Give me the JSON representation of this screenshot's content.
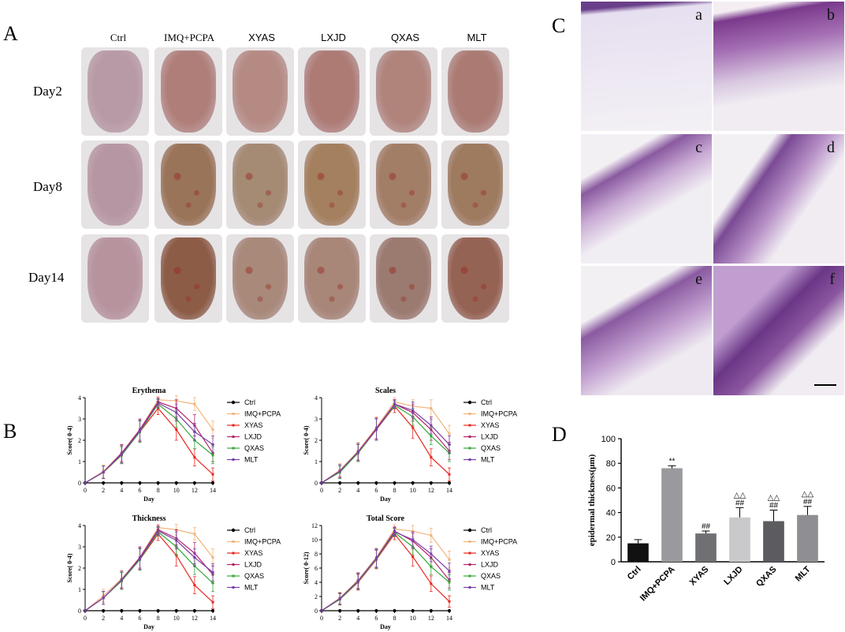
{
  "panels": {
    "A": "A",
    "B": "B",
    "C": "C",
    "D": "D"
  },
  "panelA": {
    "columns": [
      "Ctrl",
      "IMQ+PCPA",
      "XYAS",
      "LXJD",
      "QXAS",
      "MLT"
    ],
    "rows": [
      "Day2",
      "Day8",
      "Day14"
    ]
  },
  "panelC": {
    "labels": [
      "a",
      "b",
      "c",
      "d",
      "e",
      "f"
    ]
  },
  "colors": {
    "Ctrl": "#000000",
    "IMQ+PCPA": "#f2b47a",
    "XYAS": "#e8271f",
    "LXJD": "#b5246e",
    "QXAS": "#35a83a",
    "MLT": "#7b3fa8"
  },
  "lineCharts": [
    {
      "title": "Erythema",
      "ylabel": "Score( 0-4)",
      "xlabel": "Day",
      "ylim": [
        0,
        4
      ],
      "yticks": [
        0,
        1,
        2,
        3,
        4
      ],
      "xticks": [
        0,
        2,
        4,
        6,
        8,
        10,
        12,
        14
      ],
      "x": [
        0,
        2,
        4,
        6,
        8,
        10,
        12,
        14
      ],
      "series": [
        {
          "name": "Ctrl",
          "values": [
            0,
            0,
            0,
            0,
            0,
            0,
            0,
            0
          ],
          "err": [
            0,
            0,
            0,
            0,
            0,
            0,
            0,
            0
          ]
        },
        {
          "name": "IMQ+PCPA",
          "values": [
            0,
            0.55,
            1.4,
            2.5,
            3.9,
            3.85,
            3.7,
            2.5
          ],
          "err": [
            0,
            0.3,
            0.4,
            0.5,
            0.15,
            0.25,
            0.3,
            0.4
          ]
        },
        {
          "name": "XYAS",
          "values": [
            0,
            0.5,
            1.3,
            2.4,
            3.5,
            2.5,
            1.2,
            0.4
          ],
          "err": [
            0,
            0.3,
            0.4,
            0.5,
            0.3,
            0.5,
            0.4,
            0.3
          ]
        },
        {
          "name": "LXJD",
          "values": [
            0,
            0.5,
            1.4,
            2.5,
            3.8,
            3.5,
            2.7,
            1.4
          ],
          "err": [
            0,
            0.3,
            0.4,
            0.5,
            0.2,
            0.4,
            0.5,
            0.4
          ]
        },
        {
          "name": "QXAS",
          "values": [
            0,
            0.5,
            1.3,
            2.4,
            3.7,
            3.0,
            2.0,
            1.3
          ],
          "err": [
            0,
            0.3,
            0.4,
            0.5,
            0.2,
            0.4,
            0.4,
            0.4
          ]
        },
        {
          "name": "MLT",
          "values": [
            0,
            0.5,
            1.35,
            2.45,
            3.75,
            3.3,
            2.4,
            1.8
          ],
          "err": [
            0,
            0.3,
            0.4,
            0.5,
            0.2,
            0.4,
            0.4,
            0.4
          ]
        }
      ],
      "legend": [
        "Ctrl",
        "IMQ+PCPA",
        "XYAS",
        "LXJD",
        "QXAS",
        "MLT"
      ]
    },
    {
      "title": "Scales",
      "ylabel": "Score( 0-4)",
      "xlabel": "Day",
      "ylim": [
        0,
        4
      ],
      "yticks": [
        0,
        1,
        2,
        3,
        4
      ],
      "xticks": [
        0,
        2,
        4,
        6,
        8,
        10,
        12,
        14
      ],
      "x": [
        0,
        2,
        4,
        6,
        8,
        10,
        12,
        14
      ],
      "series": [
        {
          "name": "Ctrl",
          "values": [
            0,
            0,
            0,
            0,
            0,
            0,
            0,
            0
          ],
          "err": [
            0,
            0,
            0,
            0,
            0,
            0,
            0,
            0
          ]
        },
        {
          "name": "IMQ+PCPA",
          "values": [
            0,
            0.6,
            1.5,
            2.6,
            3.8,
            3.6,
            3.5,
            2.3
          ],
          "err": [
            0,
            0.3,
            0.4,
            0.5,
            0.2,
            0.3,
            0.4,
            0.4
          ]
        },
        {
          "name": "XYAS",
          "values": [
            0,
            0.55,
            1.4,
            2.5,
            3.6,
            2.6,
            1.2,
            0.4
          ],
          "err": [
            0,
            0.3,
            0.4,
            0.5,
            0.3,
            0.5,
            0.4,
            0.3
          ]
        },
        {
          "name": "LXJD",
          "values": [
            0,
            0.55,
            1.45,
            2.55,
            3.7,
            3.3,
            2.5,
            1.5
          ],
          "err": [
            0,
            0.3,
            0.4,
            0.5,
            0.2,
            0.4,
            0.5,
            0.4
          ]
        },
        {
          "name": "QXAS",
          "values": [
            0,
            0.5,
            1.4,
            2.5,
            3.65,
            3.1,
            2.2,
            1.4
          ],
          "err": [
            0,
            0.3,
            0.4,
            0.5,
            0.2,
            0.4,
            0.4,
            0.4
          ]
        },
        {
          "name": "MLT",
          "values": [
            0,
            0.55,
            1.45,
            2.5,
            3.7,
            3.4,
            2.7,
            1.8
          ],
          "err": [
            0,
            0.3,
            0.4,
            0.5,
            0.2,
            0.4,
            0.4,
            0.4
          ]
        }
      ],
      "legend": [
        "Ctrl",
        "IMQ+PCPA",
        "XYAS",
        "LXJD",
        "QXAS",
        "MLT"
      ]
    },
    {
      "title": "Thickness",
      "ylabel": "Score( 0-4)",
      "xlabel": "Day",
      "ylim": [
        0,
        4
      ],
      "yticks": [
        0,
        1,
        2,
        3,
        4
      ],
      "xticks": [
        0,
        2,
        4,
        6,
        8,
        10,
        12,
        14
      ],
      "x": [
        0,
        2,
        4,
        6,
        8,
        10,
        12,
        14
      ],
      "series": [
        {
          "name": "Ctrl",
          "values": [
            0,
            0,
            0,
            0,
            0,
            0,
            0,
            0
          ],
          "err": [
            0,
            0,
            0,
            0,
            0,
            0,
            0,
            0
          ]
        },
        {
          "name": "IMQ+PCPA",
          "values": [
            0,
            0.7,
            1.5,
            2.5,
            3.9,
            3.8,
            3.6,
            2.5
          ],
          "err": [
            0,
            0.3,
            0.4,
            0.5,
            0.15,
            0.25,
            0.3,
            0.4
          ]
        },
        {
          "name": "XYAS",
          "values": [
            0,
            0.6,
            1.4,
            2.4,
            3.6,
            2.6,
            1.2,
            0.4
          ],
          "err": [
            0,
            0.3,
            0.4,
            0.5,
            0.3,
            0.5,
            0.4,
            0.3
          ]
        },
        {
          "name": "LXJD",
          "values": [
            0,
            0.6,
            1.45,
            2.5,
            3.8,
            3.4,
            2.7,
            1.7
          ],
          "err": [
            0,
            0.3,
            0.4,
            0.5,
            0.2,
            0.4,
            0.5,
            0.4
          ]
        },
        {
          "name": "QXAS",
          "values": [
            0,
            0.6,
            1.4,
            2.4,
            3.7,
            3.0,
            2.1,
            1.3
          ],
          "err": [
            0,
            0.3,
            0.4,
            0.5,
            0.2,
            0.4,
            0.4,
            0.4
          ]
        },
        {
          "name": "MLT",
          "values": [
            0,
            0.6,
            1.45,
            2.45,
            3.75,
            3.3,
            2.5,
            1.8
          ],
          "err": [
            0,
            0.3,
            0.4,
            0.5,
            0.2,
            0.4,
            0.4,
            0.4
          ]
        }
      ],
      "legend": [
        "Ctrl",
        "IMQ+PCPA",
        "XYAS",
        "LXJD",
        "QXAS",
        "MLT"
      ]
    },
    {
      "title": "Total Score",
      "ylabel": "Score( 0-12)",
      "xlabel": "Day",
      "ylim": [
        0,
        12
      ],
      "yticks": [
        0,
        2,
        4,
        6,
        8,
        10,
        12
      ],
      "xticks": [
        0,
        2,
        4,
        6,
        8,
        10,
        12,
        14
      ],
      "x": [
        0,
        2,
        4,
        6,
        8,
        10,
        12,
        14
      ],
      "series": [
        {
          "name": "Ctrl",
          "values": [
            0,
            0,
            0,
            0,
            0,
            0,
            0,
            0
          ],
          "err": [
            0,
            0,
            0,
            0,
            0,
            0,
            0,
            0
          ]
        },
        {
          "name": "IMQ+PCPA",
          "values": [
            0,
            1.8,
            4.3,
            7.5,
            11.5,
            11.2,
            10.6,
            7.2
          ],
          "err": [
            0,
            0.8,
            1.1,
            1.3,
            0.6,
            0.8,
            1.0,
            1.2
          ]
        },
        {
          "name": "XYAS",
          "values": [
            0,
            1.6,
            4.0,
            7.2,
            10.8,
            7.6,
            3.8,
            1.3
          ],
          "err": [
            0,
            0.8,
            1.1,
            1.3,
            0.8,
            1.3,
            1.1,
            0.8
          ]
        },
        {
          "name": "LXJD",
          "values": [
            0,
            1.7,
            4.2,
            7.4,
            11.2,
            9.8,
            7.5,
            4.3
          ],
          "err": [
            0,
            0.8,
            1.1,
            1.3,
            0.6,
            1.1,
            1.2,
            1.1
          ]
        },
        {
          "name": "QXAS",
          "values": [
            0,
            1.6,
            4.1,
            7.3,
            11.0,
            9.0,
            6.2,
            4.0
          ],
          "err": [
            0,
            0.8,
            1.1,
            1.3,
            0.6,
            1.1,
            1.1,
            1.1
          ]
        },
        {
          "name": "MLT",
          "values": [
            0,
            1.7,
            4.2,
            7.4,
            11.1,
            10.0,
            8.0,
            5.6
          ],
          "err": [
            0,
            0.8,
            1.1,
            1.3,
            0.6,
            1.1,
            1.1,
            1.1
          ]
        }
      ],
      "legend": [
        "Ctrl",
        "IMQ+PCPA",
        "XYAS",
        "LXJD",
        "QXAS",
        "MLT"
      ]
    }
  ],
  "chart_data": {
    "type": "bar",
    "ylabel": "epidermal thickness(μm)",
    "ylim": [
      0,
      100
    ],
    "yticks": [
      0,
      20,
      40,
      60,
      80,
      100
    ],
    "categories": [
      "Ctrl",
      "IMQ+PCPA",
      "XYAS",
      "LXJD",
      "QXAS",
      "MLT"
    ],
    "values": [
      15,
      76,
      23,
      36,
      33,
      38
    ],
    "errors": [
      3,
      2,
      2,
      8,
      9,
      7
    ],
    "bar_colors": [
      "#111111",
      "#9a9a9e",
      "#6f6f74",
      "#c9c9cc",
      "#5b5b60",
      "#8e8e93"
    ],
    "annotations": [
      {
        "category": "IMQ+PCPA",
        "lines": [
          "**"
        ]
      },
      {
        "category": "XYAS",
        "lines": [
          "##"
        ]
      },
      {
        "category": "LXJD",
        "lines": [
          "△△",
          "##"
        ]
      },
      {
        "category": "QXAS",
        "lines": [
          "△△",
          "##"
        ]
      },
      {
        "category": "MLT",
        "lines": [
          "△△",
          "##"
        ]
      }
    ]
  }
}
